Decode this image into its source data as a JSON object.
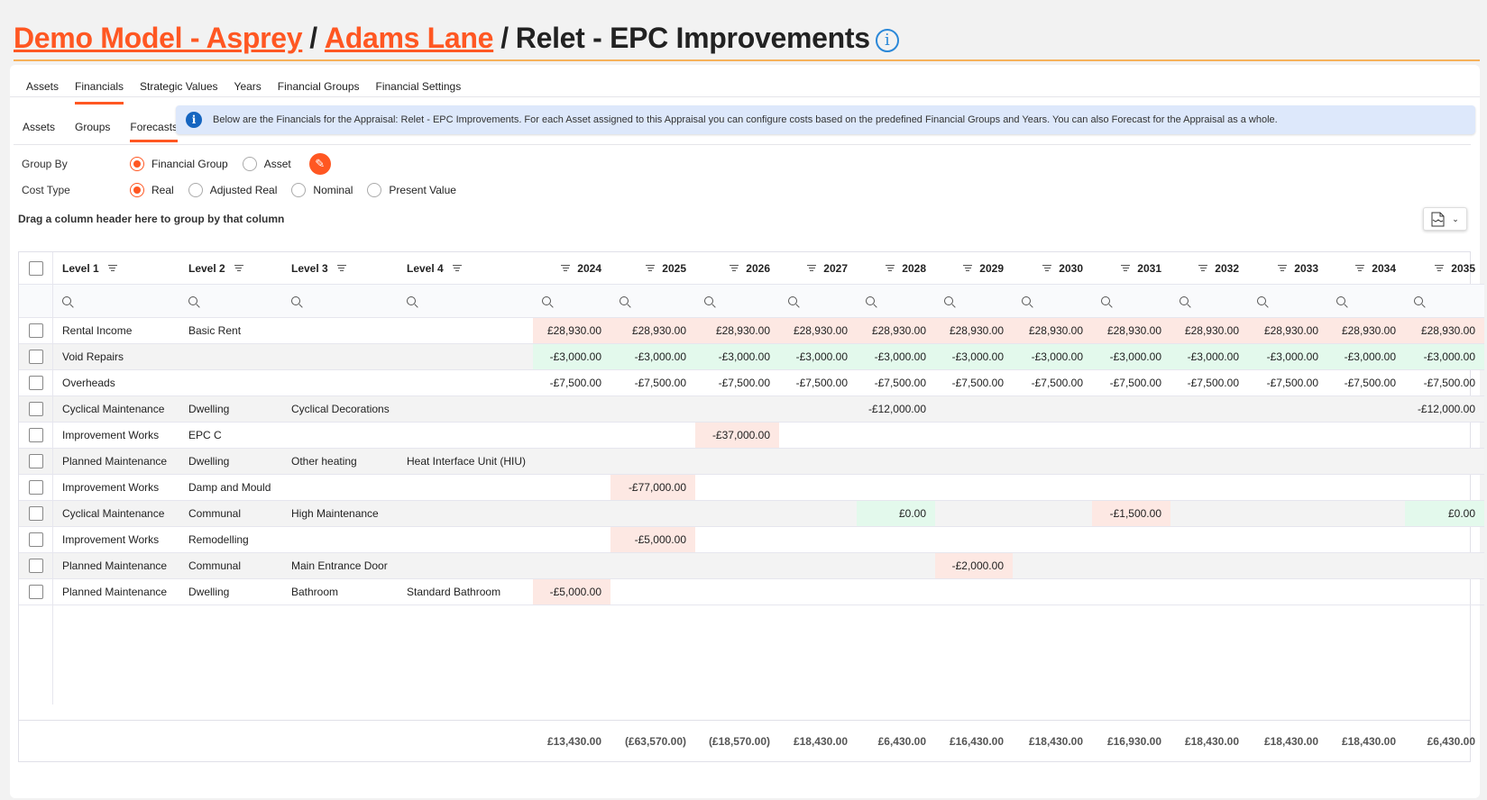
{
  "breadcrumb": {
    "model": "Demo Model - Asprey",
    "separator": "/",
    "asset": "Adams Lane",
    "current": "Relet - EPC Improvements"
  },
  "tabs": [
    {
      "label": "Assets",
      "active": false
    },
    {
      "label": "Financials",
      "active": true
    },
    {
      "label": "Strategic Values",
      "active": false
    },
    {
      "label": "Years",
      "active": false
    },
    {
      "label": "Financial Groups",
      "active": false
    },
    {
      "label": "Financial Settings",
      "active": false
    }
  ],
  "subtabs": [
    {
      "label": "Assets",
      "active": false
    },
    {
      "label": "Groups",
      "active": false
    },
    {
      "label": "Forecasts",
      "active": true
    }
  ],
  "banner": {
    "icon": "info-icon",
    "text": "Below are the Financials for the Appraisal: Relet - EPC Improvements. For each Asset assigned to this Appraisal you can configure costs based on the predefined Financial Groups and Years. You can also Forecast for the Appraisal as a whole."
  },
  "group_by": {
    "label": "Group By",
    "options": [
      "Financial Group",
      "Asset"
    ],
    "selected": "Financial Group"
  },
  "cost_type": {
    "label": "Cost Type",
    "options": [
      "Real",
      "Adjusted Real",
      "Nominal",
      "Present Value"
    ],
    "selected": "Real"
  },
  "drag_hint": "Drag a column header here to group by that column",
  "colors": {
    "accent": "#ff5722",
    "income_highlight": "#fde8e3",
    "positive_highlight": "#e3f9ec"
  },
  "grid": {
    "level_headers": [
      "Level 1",
      "Level 2",
      "Level 3",
      "Level 4"
    ],
    "years": [
      "2024",
      "2025",
      "2026",
      "2027",
      "2028",
      "2029",
      "2030",
      "2031",
      "2032",
      "2033",
      "2034",
      "2035"
    ],
    "rows": [
      {
        "levels": [
          "Rental Income",
          "Basic Rent",
          "",
          ""
        ],
        "values": [
          "£28,930.00",
          "£28,930.00",
          "£28,930.00",
          "£28,930.00",
          "£28,930.00",
          "£28,930.00",
          "£28,930.00",
          "£28,930.00",
          "£28,930.00",
          "£28,930.00",
          "£28,930.00",
          "£28,930.00"
        ],
        "highlight": [
          "#fde8e3",
          "#fde8e3",
          "#fde8e3",
          "#fde8e3",
          "#fde8e3",
          "#fde8e3",
          "#fde8e3",
          "#fde8e3",
          "#fde8e3",
          "#fde8e3",
          "#fde8e3",
          "#fde8e3"
        ]
      },
      {
        "levels": [
          "Void Repairs",
          "",
          "",
          ""
        ],
        "values": [
          "-£3,000.00",
          "-£3,000.00",
          "-£3,000.00",
          "-£3,000.00",
          "-£3,000.00",
          "-£3,000.00",
          "-£3,000.00",
          "-£3,000.00",
          "-£3,000.00",
          "-£3,000.00",
          "-£3,000.00",
          "-£3,000.00"
        ],
        "highlight": [
          "#e3f9ec",
          "#e3f9ec",
          "#e3f9ec",
          "#e3f9ec",
          "#e3f9ec",
          "#e3f9ec",
          "#e3f9ec",
          "#e3f9ec",
          "#e3f9ec",
          "#e3f9ec",
          "#e3f9ec",
          "#e3f9ec"
        ]
      },
      {
        "levels": [
          "Overheads",
          "",
          "",
          ""
        ],
        "values": [
          "-£7,500.00",
          "-£7,500.00",
          "-£7,500.00",
          "-£7,500.00",
          "-£7,500.00",
          "-£7,500.00",
          "-£7,500.00",
          "-£7,500.00",
          "-£7,500.00",
          "-£7,500.00",
          "-£7,500.00",
          "-£7,500.00"
        ],
        "highlight": [
          "",
          "",
          "",
          "",
          "",
          "",
          "",
          "",
          "",
          "",
          "",
          ""
        ]
      },
      {
        "levels": [
          "Cyclical Maintenance",
          "Dwelling",
          "Cyclical Decorations",
          ""
        ],
        "values": [
          "",
          "",
          "",
          "",
          "-£12,000.00",
          "",
          "",
          "",
          "",
          "",
          "",
          "-£12,000.00"
        ],
        "highlight": [
          "",
          "",
          "",
          "",
          "",
          "",
          "",
          "",
          "",
          "",
          "",
          ""
        ]
      },
      {
        "levels": [
          "Improvement Works",
          "EPC C",
          "",
          ""
        ],
        "values": [
          "",
          "",
          "-£37,000.00",
          "",
          "",
          "",
          "",
          "",
          "",
          "",
          "",
          ""
        ],
        "highlight": [
          "",
          "",
          "#fde8e3",
          "",
          "",
          "",
          "",
          "",
          "",
          "",
          "",
          ""
        ]
      },
      {
        "levels": [
          "Planned Maintenance",
          "Dwelling",
          "Other heating",
          "Heat Interface Unit (HIU)"
        ],
        "values": [
          "",
          "",
          "",
          "",
          "",
          "",
          "",
          "",
          "",
          "",
          "",
          ""
        ],
        "highlight": [
          "",
          "",
          "",
          "",
          "",
          "",
          "",
          "",
          "",
          "",
          "",
          ""
        ]
      },
      {
        "levels": [
          "Improvement Works",
          "Damp and Mould",
          "",
          ""
        ],
        "values": [
          "",
          "-£77,000.00",
          "",
          "",
          "",
          "",
          "",
          "",
          "",
          "",
          "",
          ""
        ],
        "highlight": [
          "",
          "#fde8e3",
          "",
          "",
          "",
          "",
          "",
          "",
          "",
          "",
          "",
          ""
        ]
      },
      {
        "levels": [
          "Cyclical Maintenance",
          "Communal",
          "High Maintenance",
          ""
        ],
        "values": [
          "",
          "",
          "",
          "",
          "£0.00",
          "",
          "",
          "-£1,500.00",
          "",
          "",
          "",
          "£0.00"
        ],
        "highlight": [
          "",
          "",
          "",
          "",
          "#e3f9ec",
          "",
          "",
          "#fde8e3",
          "",
          "",
          "",
          "#e3f9ec"
        ]
      },
      {
        "levels": [
          "Improvement Works",
          "Remodelling",
          "",
          ""
        ],
        "values": [
          "",
          "-£5,000.00",
          "",
          "",
          "",
          "",
          "",
          "",
          "",
          "",
          "",
          ""
        ],
        "highlight": [
          "",
          "#fde8e3",
          "",
          "",
          "",
          "",
          "",
          "",
          "",
          "",
          "",
          ""
        ]
      },
      {
        "levels": [
          "Planned Maintenance",
          "Communal",
          "Main Entrance Door",
          ""
        ],
        "values": [
          "",
          "",
          "",
          "",
          "",
          "-£2,000.00",
          "",
          "",
          "",
          "",
          "",
          ""
        ],
        "highlight": [
          "",
          "",
          "",
          "",
          "",
          "#fde8e3",
          "",
          "",
          "",
          "",
          "",
          ""
        ]
      },
      {
        "levels": [
          "Planned Maintenance",
          "Dwelling",
          "Bathroom",
          "Standard Bathroom"
        ],
        "values": [
          "-£5,000.00",
          "",
          "",
          "",
          "",
          "",
          "",
          "",
          "",
          "",
          "",
          ""
        ],
        "highlight": [
          "#fde8e3",
          "",
          "",
          "",
          "",
          "",
          "",
          "",
          "",
          "",
          "",
          ""
        ]
      }
    ],
    "totals": [
      "£13,430.00",
      "(£63,570.00)",
      "(£18,570.00)",
      "£18,430.00",
      "£6,430.00",
      "£16,430.00",
      "£18,430.00",
      "£16,930.00",
      "£18,430.00",
      "£18,430.00",
      "£18,430.00",
      "£6,430.00"
    ]
  }
}
